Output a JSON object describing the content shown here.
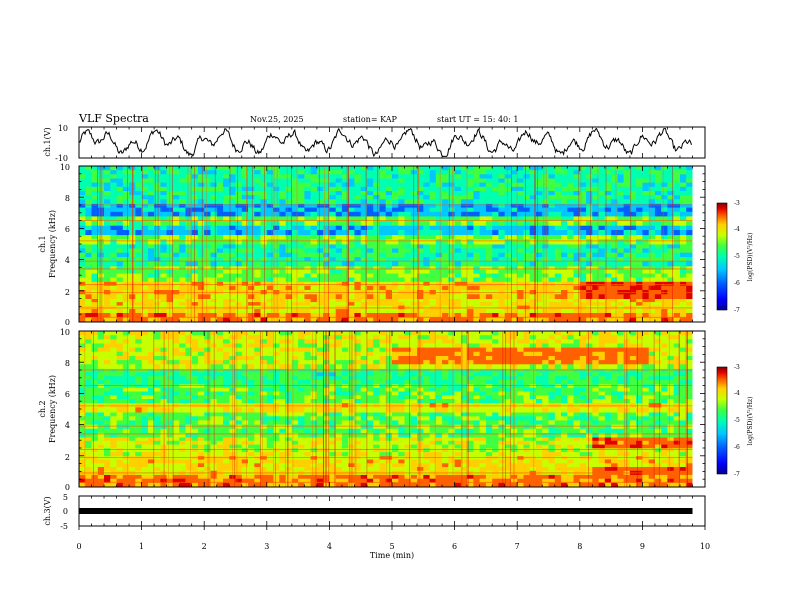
{
  "header": {
    "title": "VLF Spectra",
    "date": "Nov.25, 2025",
    "station": "station= KAP",
    "start_ut": "start  UT  =   15: 40: 1"
  },
  "colors": {
    "trace": "#000000",
    "background": "#ffffff",
    "colormap": [
      "#000090",
      "#0000ff",
      "#0060ff",
      "#00c8ff",
      "#00ffb0",
      "#40ff40",
      "#c8ff00",
      "#ffd000",
      "#ff6000",
      "#e00000",
      "#800000"
    ]
  },
  "chart_data": [
    {
      "type": "line",
      "panel": "ch1-time-series",
      "ylabel": "ch.1(V)",
      "ylim": [
        -10,
        10
      ],
      "ytick_labels": [
        "10",
        "-10"
      ],
      "xlim": [
        0,
        10
      ],
      "description_values": {
        "approx_mean": 0,
        "approx_amplitude": 5
      }
    },
    {
      "type": "heatmap",
      "panel": "ch1-spectrogram",
      "ylabel_top": "ch.1",
      "ylabel": "Frequency (kHz)",
      "ylim": [
        0,
        10
      ],
      "ytick_labels": [
        "0",
        "2",
        "4",
        "6",
        "8",
        "10"
      ],
      "xlim": [
        0,
        9.8
      ],
      "colorbar": {
        "label": "log(PSD)(V²/Hz)",
        "range": [
          -7,
          -3
        ],
        "tick_labels": [
          "-3",
          "-4",
          "-5",
          "-6",
          "-7"
        ]
      },
      "bands": [
        {
          "from": 0,
          "to": 0.6,
          "level": -4.0
        },
        {
          "from": 0.6,
          "to": 1.5,
          "level": -4.4
        },
        {
          "from": 1.5,
          "to": 2.6,
          "level": -4.3
        },
        {
          "from": 2.6,
          "to": 3.6,
          "level": -4.9
        },
        {
          "from": 3.6,
          "to": 5.0,
          "level": -5.3
        },
        {
          "from": 5.0,
          "to": 5.6,
          "level": -4.9
        },
        {
          "from": 5.6,
          "to": 6.2,
          "level": -5.7
        },
        {
          "from": 6.2,
          "to": 6.8,
          "level": -5.0
        },
        {
          "from": 6.8,
          "to": 7.6,
          "level": -5.8
        },
        {
          "from": 7.6,
          "to": 10,
          "level": -5.3
        }
      ],
      "hot_segments": [
        {
          "t0": 8.0,
          "t1": 9.8,
          "f0": 1.6,
          "f1": 2.6,
          "level": -3.8
        }
      ]
    },
    {
      "type": "heatmap",
      "panel": "ch2-spectrogram",
      "ylabel_top": "ch.2",
      "ylabel": "Frequency (kHz)",
      "ylim": [
        0,
        10
      ],
      "ytick_labels": [
        "0",
        "2",
        "4",
        "6",
        "8",
        "10"
      ],
      "xlim": [
        0,
        9.8
      ],
      "colorbar": {
        "label": "log(PSD)(V²/Hz)",
        "range": [
          -7,
          -3
        ],
        "tick_labels": [
          "-3",
          "-4",
          "-5",
          "-6",
          "-7"
        ]
      },
      "bands": [
        {
          "from": 0,
          "to": 0.8,
          "level": -4.0
        },
        {
          "from": 0.8,
          "to": 2.0,
          "level": -4.4
        },
        {
          "from": 2.0,
          "to": 3.2,
          "level": -4.6
        },
        {
          "from": 3.2,
          "to": 4.8,
          "level": -5.0
        },
        {
          "from": 4.8,
          "to": 5.4,
          "level": -4.4
        },
        {
          "from": 5.4,
          "to": 6.6,
          "level": -5.0
        },
        {
          "from": 6.6,
          "to": 7.6,
          "level": -5.2
        },
        {
          "from": 7.6,
          "to": 10,
          "level": -4.6
        }
      ],
      "hot_segments": [
        {
          "t0": 5.0,
          "t1": 9.0,
          "f0": 8.6,
          "f1": 9.6,
          "level": -4.0
        },
        {
          "t0": 8.2,
          "t1": 9.8,
          "f0": 1.6,
          "f1": 2.6,
          "level": -3.9
        }
      ]
    },
    {
      "type": "line",
      "panel": "ch3-time-series",
      "ylabel": "ch.3(V)",
      "ylim": [
        -5,
        5
      ],
      "ytick_labels": [
        "5",
        "0",
        "-5"
      ],
      "xlim": [
        0,
        10
      ],
      "xlabel": "Time  (min)",
      "xtick_labels": [
        "0",
        "1",
        "2",
        "3",
        "4",
        "5",
        "6",
        "7",
        "8",
        "9",
        "10"
      ],
      "constant_value": 0
    }
  ]
}
